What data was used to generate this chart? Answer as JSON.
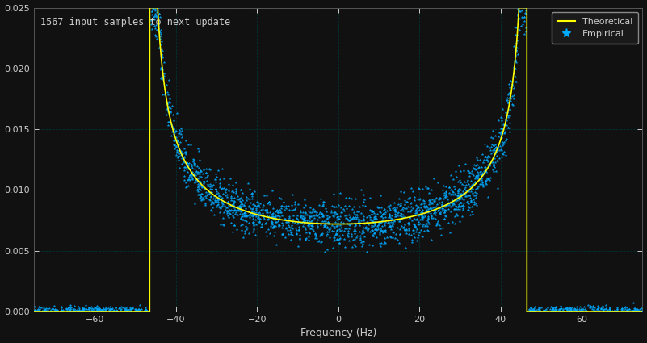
{
  "title": "1567 input samples to next update",
  "xlabel": "Frequency (Hz)",
  "xlim": [
    -75,
    75
  ],
  "ylim": [
    0,
    0.025
  ],
  "yticks": [
    0,
    0.005,
    0.01,
    0.015,
    0.02,
    0.025
  ],
  "xticks": [
    -60,
    -40,
    -20,
    0,
    20,
    40,
    60
  ],
  "background_color": "#111111",
  "grid_color": "#003333",
  "text_color": "#cccccc",
  "theoretical_color": "#ffff00",
  "empirical_color": "#00aaff",
  "legend_facecolor": "#1a1a1a",
  "legend_edgecolor": "#888888",
  "fm": 46.5,
  "scale": 0.0072,
  "noise_std_low": 0.0006,
  "noise_std_high": 0.001,
  "n_points": 2000
}
